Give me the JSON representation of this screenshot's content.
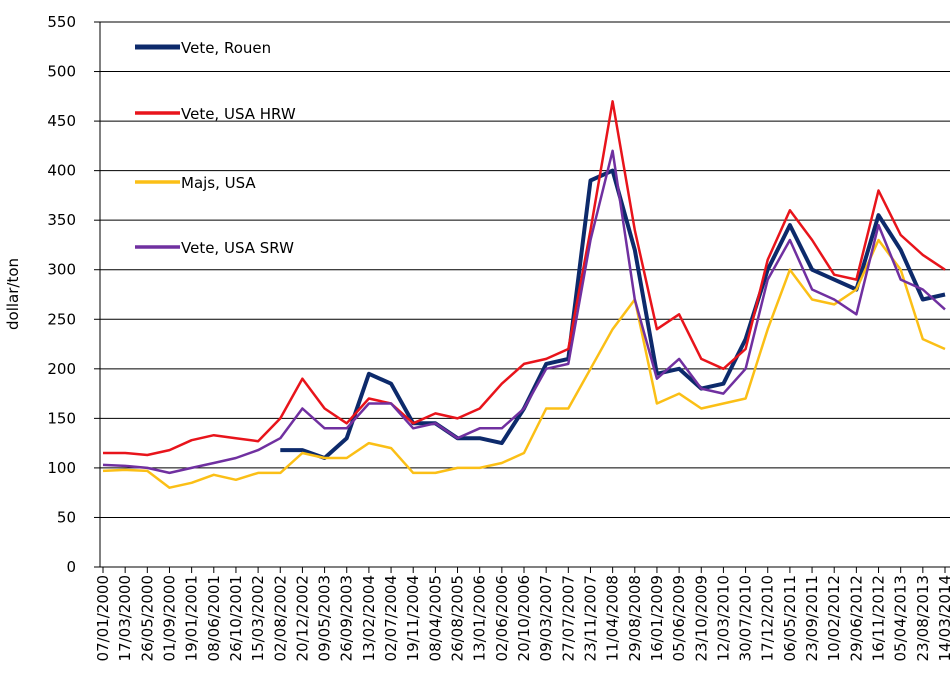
{
  "chart_data": {
    "type": "line",
    "y_label": "dollar/ton",
    "ylim": [
      0,
      550
    ],
    "yticks": [
      0,
      50,
      100,
      150,
      200,
      250,
      300,
      350,
      400,
      450,
      500,
      550
    ],
    "grid": true,
    "legend": "upper left",
    "categories": [
      "07/01/2000",
      "17/03/2000",
      "26/05/2000",
      "01/09/2000",
      "19/01/2001",
      "08/06/2001",
      "26/10/2001",
      "15/03/2002",
      "02/08/2002",
      "20/12/2002",
      "09/05/2003",
      "26/09/2003",
      "13/02/2004",
      "02/07/2004",
      "19/11/2004",
      "08/04/2005",
      "26/08/2005",
      "13/01/2006",
      "02/06/2006",
      "20/10/2006",
      "09/03/2007",
      "27/07/2007",
      "23/11/2007",
      "11/04/2008",
      "29/08/2008",
      "16/01/2009",
      "05/06/2009",
      "23/10/2009",
      "12/03/2010",
      "30/07/2010",
      "17/12/2010",
      "06/05/2011",
      "23/09/2011",
      "10/02/2012",
      "29/06/2012",
      "16/11/2012",
      "05/04/2013",
      "23/08/2013",
      "14/03/2014"
    ],
    "series": [
      {
        "name": "Vete, Rouen",
        "color": "#0d2a6b",
        "width": 4,
        "values": [
          null,
          null,
          null,
          null,
          null,
          null,
          null,
          null,
          118,
          118,
          110,
          130,
          195,
          185,
          145,
          145,
          130,
          130,
          125,
          160,
          205,
          210,
          390,
          400,
          320,
          195,
          200,
          180,
          185,
          230,
          300,
          345,
          300,
          290,
          280,
          355,
          320,
          270,
          275
        ]
      },
      {
        "name": "Vete, USA HRW",
        "color": "#e8141b",
        "width": 2.5,
        "values": [
          115,
          115,
          113,
          118,
          128,
          133,
          130,
          127,
          150,
          190,
          160,
          145,
          170,
          165,
          145,
          155,
          150,
          160,
          185,
          205,
          210,
          220,
          340,
          470,
          340,
          240,
          255,
          210,
          200,
          220,
          310,
          360,
          330,
          295,
          290,
          380,
          335,
          315,
          300
        ]
      },
      {
        "name": "Majs, USA",
        "color": "#fbbf16",
        "width": 2.5,
        "values": [
          97,
          98,
          97,
          80,
          85,
          93,
          88,
          95,
          95,
          115,
          110,
          110,
          125,
          120,
          95,
          95,
          100,
          100,
          105,
          115,
          160,
          160,
          200,
          240,
          270,
          165,
          175,
          160,
          165,
          170,
          240,
          300,
          270,
          265,
          280,
          330,
          300,
          230,
          220
        ]
      },
      {
        "name": "Vete, USA SRW",
        "color": "#7030a0",
        "width": 2.5,
        "values": [
          103,
          102,
          100,
          95,
          100,
          105,
          110,
          118,
          130,
          160,
          140,
          140,
          165,
          165,
          140,
          145,
          130,
          140,
          140,
          160,
          200,
          205,
          330,
          420,
          270,
          190,
          210,
          180,
          175,
          200,
          290,
          330,
          280,
          270,
          255,
          345,
          290,
          280,
          260
        ]
      }
    ]
  }
}
